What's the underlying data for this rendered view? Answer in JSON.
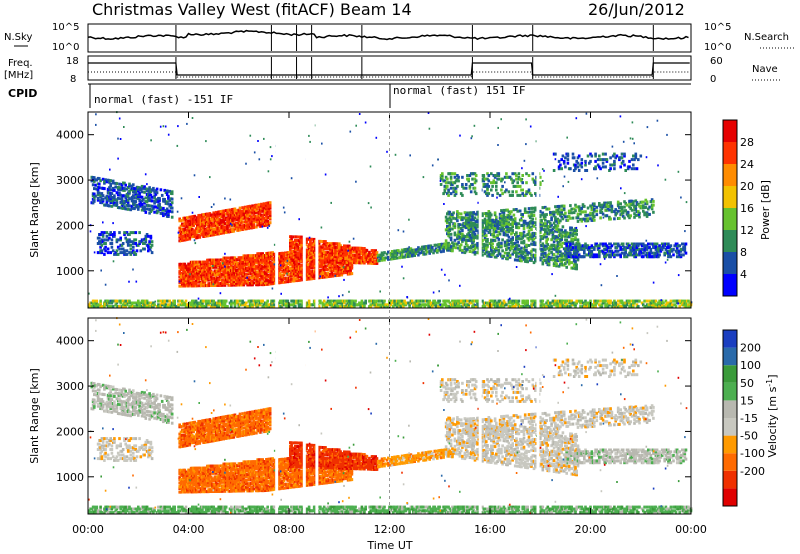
{
  "header": {
    "station": "Christmas Valley West (fitACF)",
    "beam": "Beam 14",
    "date": "26/Jun/2012"
  },
  "strips": {
    "nsky_label": "N.Sky",
    "nsky_ticks": [
      "10^5",
      "10^0"
    ],
    "nsearch_label": "N.Search",
    "nsearch_ticks": [
      "10^5",
      "10^0"
    ],
    "freq_label": "Freq.",
    "freq_unit": "[MHz]",
    "freq_ticks": [
      "18",
      "8"
    ],
    "nave_label": "Nave",
    "nave_ticks": [
      "60",
      "0"
    ],
    "cpid_label": "CPID",
    "cpid_segments": [
      "normal (fast) -151 IF",
      "normal (fast) 151 IF"
    ]
  },
  "colors": {
    "power": [
      "#0000ff",
      "#1a4fa6",
      "#2e8b57",
      "#66c22e",
      "#f2c200",
      "#ff8c00",
      "#ff3300",
      "#e60000"
    ],
    "velocity": [
      "#e00000",
      "#f03000",
      "#ff6a00",
      "#ff9a00",
      "#c8c8c0",
      "#b8b8b0",
      "#4caf50",
      "#3a9b3a",
      "#2a6aaa",
      "#1a3ec0"
    ]
  },
  "chart_data": [
    {
      "type": "heatmap",
      "name_panel": "power",
      "ylabel": "Slant Range [km]",
      "yticks": [
        "4000",
        "3000",
        "2000",
        "1000"
      ],
      "ylim": [
        180,
        4500
      ],
      "colorbar_label": "Power [dB]",
      "colorbar_ticks": [
        "28",
        "24",
        "20",
        "16",
        "12",
        "8",
        "4"
      ],
      "colorbar_range": [
        0,
        32
      ]
    },
    {
      "type": "heatmap",
      "name_panel": "velocity",
      "ylabel": "Slant Range [km]",
      "yticks": [
        "4000",
        "3000",
        "2000",
        "1000"
      ],
      "ylim": [
        180,
        4500
      ],
      "colorbar_label": "Velocity [m s",
      "colorbar_label_sup": "-1",
      "colorbar_label_end": "]",
      "colorbar_ticks": [
        "200",
        "100",
        "50",
        "15",
        "-15",
        "-50",
        "-100",
        "-200"
      ]
    }
  ],
  "xaxis": {
    "label": "Time UT",
    "ticks": [
      "00:00",
      "04:00",
      "08:00",
      "12:00",
      "16:00",
      "20:00",
      "00:00"
    ]
  }
}
